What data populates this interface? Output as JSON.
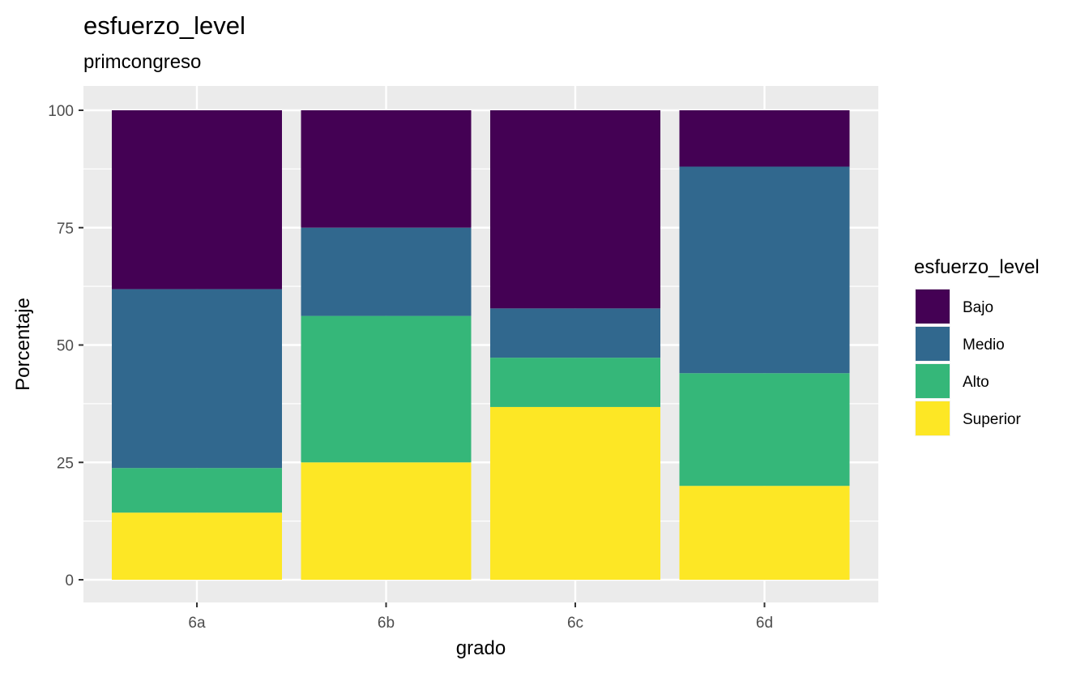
{
  "chart_data": {
    "type": "bar",
    "stacked": true,
    "title": "esfuerzo_level",
    "subtitle": "primcongreso",
    "xlabel": "grado",
    "ylabel": "Porcentaje",
    "categories": [
      "6a",
      "6b",
      "6c",
      "6d"
    ],
    "ylim": [
      0,
      100
    ],
    "yticks": [
      0,
      25,
      50,
      75,
      100
    ],
    "grid": true,
    "legend": {
      "title": "esfuerzo_level",
      "position": "right",
      "entries": [
        "Bajo",
        "Medio",
        "Alto",
        "Superior"
      ]
    },
    "series": [
      {
        "name": "Superior",
        "color": "#FDE725",
        "values": [
          14.3,
          25.0,
          36.8,
          20.0
        ]
      },
      {
        "name": "Alto",
        "color": "#35B779",
        "values": [
          9.5,
          31.2,
          10.5,
          24.0
        ]
      },
      {
        "name": "Medio",
        "color": "#31688E",
        "values": [
          38.1,
          18.8,
          10.5,
          44.0
        ]
      },
      {
        "name": "Bajo",
        "color": "#440154",
        "values": [
          38.1,
          25.0,
          42.2,
          12.0
        ]
      }
    ]
  }
}
